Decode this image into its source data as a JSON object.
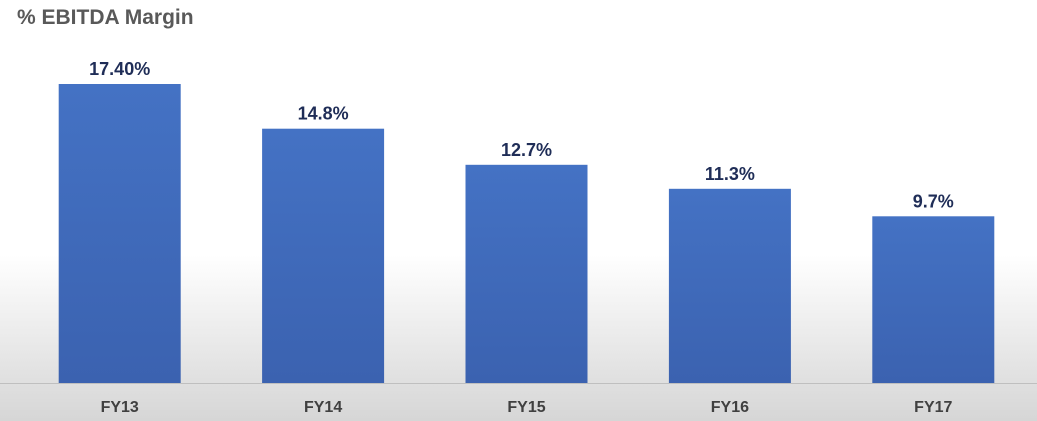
{
  "chart_data": {
    "type": "bar",
    "title": "% EBITDA Margin",
    "categories": [
      "FY13",
      "FY14",
      "FY15",
      "FY16",
      "FY17"
    ],
    "values": [
      17.4,
      14.8,
      12.7,
      11.3,
      9.7
    ],
    "data_labels": [
      "17.40%",
      "14.8%",
      "12.7%",
      "11.3%",
      "9.7%"
    ],
    "ylim": [
      0,
      17.4
    ],
    "grid": false,
    "legend": "none",
    "colors": {
      "bar": "#4472c4",
      "bar_dark": "#3b62b0",
      "data_label": "#1f2d57",
      "tick_label": "#404040",
      "title": "#595959",
      "baseline": "#bfbfbf"
    }
  }
}
